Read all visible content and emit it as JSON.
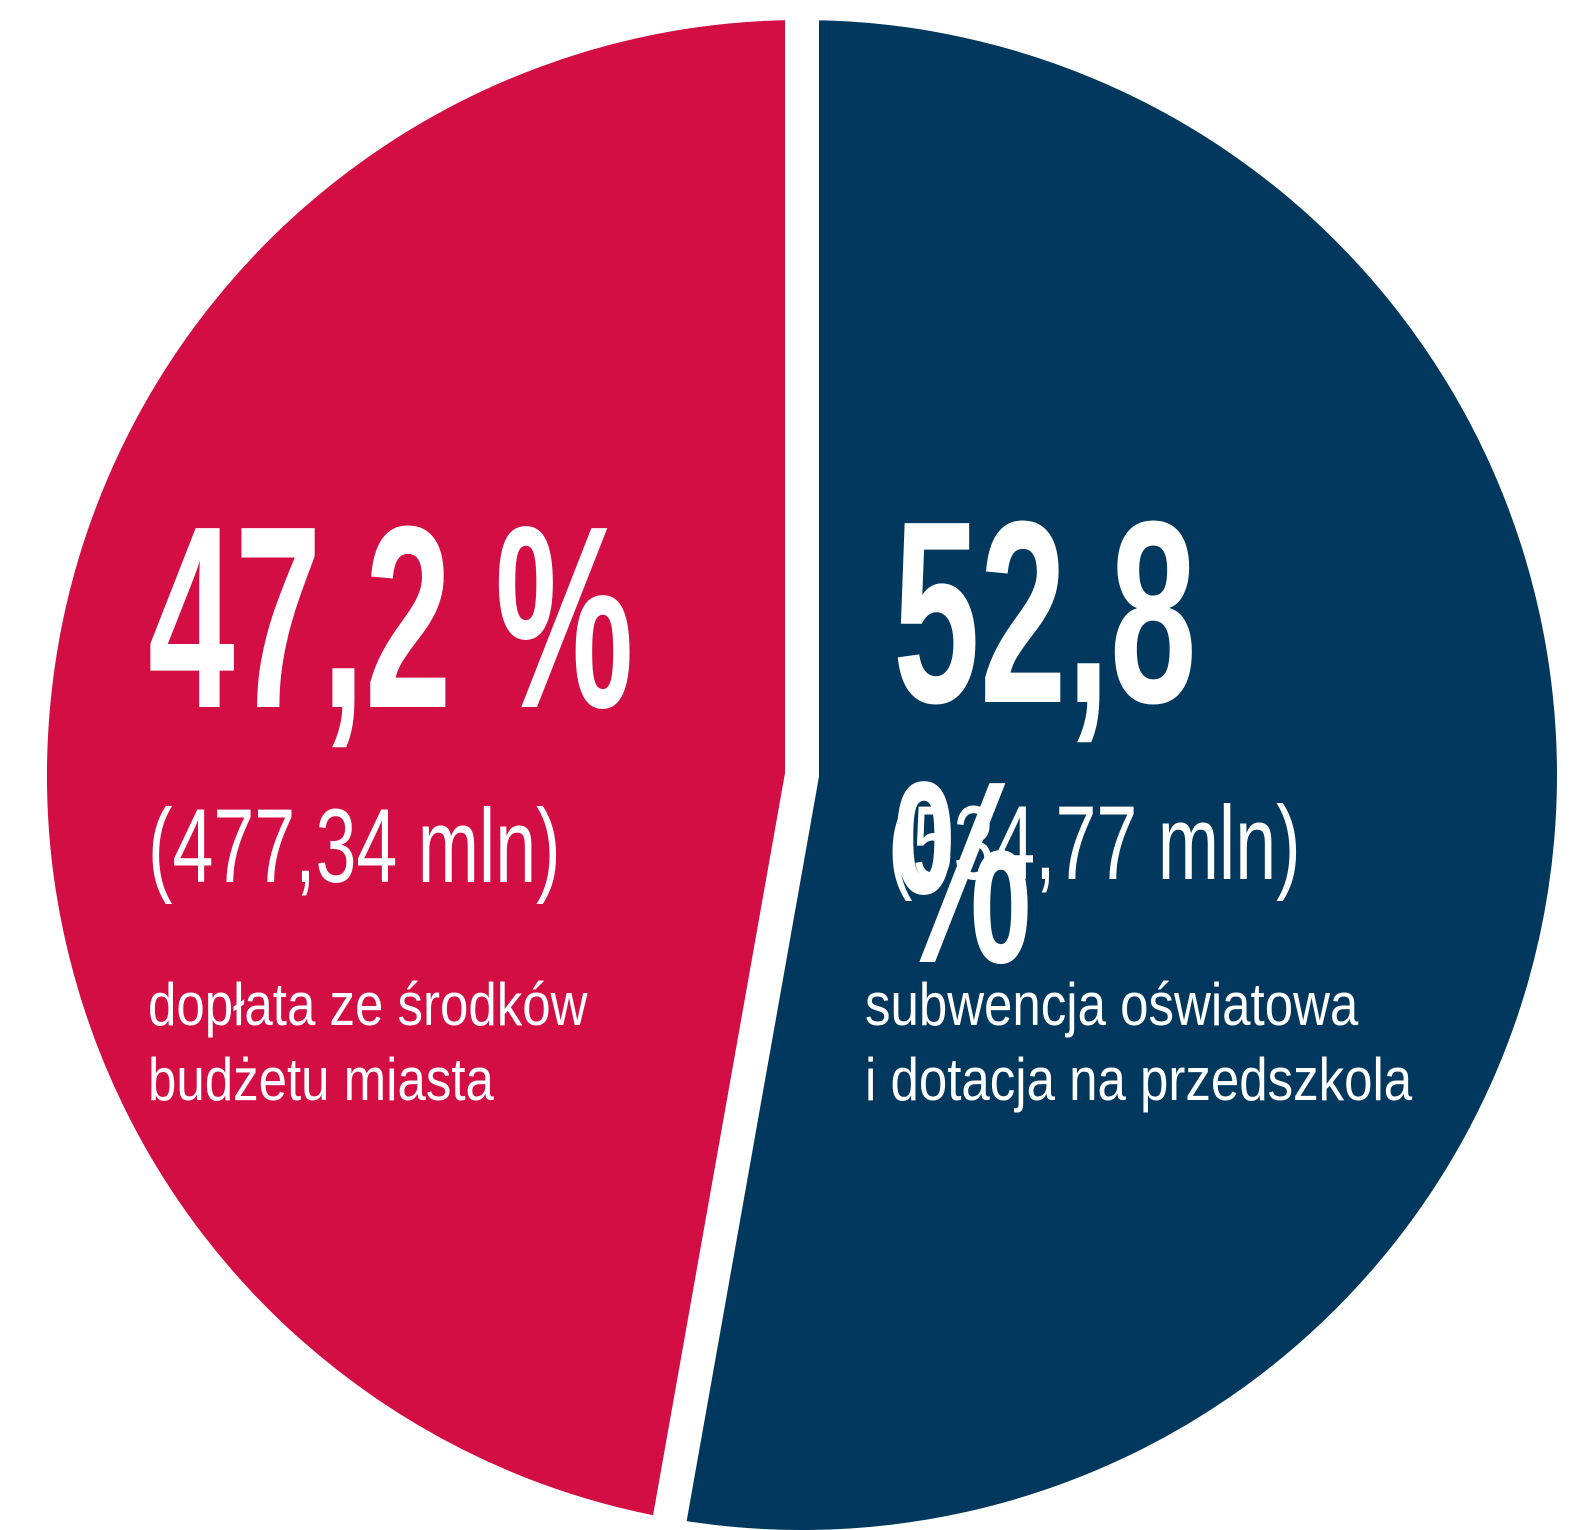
{
  "chart_data": {
    "type": "pie",
    "categories": [
      "dopłata ze środków\nbudżetu miasta",
      "subwencja oświatowa\ni dotacja na przedszkola"
    ],
    "values": [
      47.2,
      52.8
    ],
    "value_labels": [
      "47,2 %",
      "52,8 %"
    ],
    "amount_labels": [
      "(477,34 mln)",
      "(534,77 mln)"
    ],
    "colors": [
      "#d20e45",
      "#02385d"
    ]
  }
}
